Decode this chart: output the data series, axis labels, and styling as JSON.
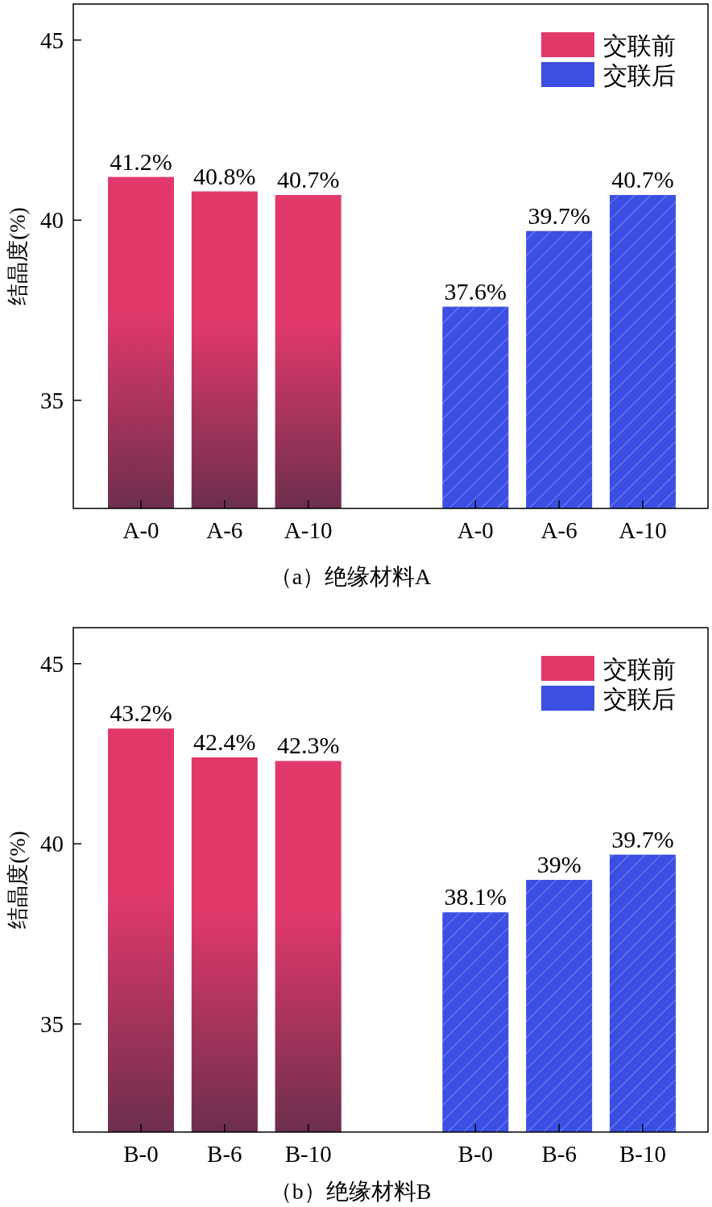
{
  "chart_data": [
    {
      "type": "bar",
      "title": "（a）绝缘材料A",
      "ylabel": "结晶度(%)",
      "categories": [
        "A-0",
        "A-6",
        "A-10",
        null,
        "A-0",
        "A-6",
        "A-10"
      ],
      "ylim": [
        32,
        46
      ],
      "yticks": [
        35,
        40,
        45
      ],
      "legend": "top right",
      "series": [
        {
          "name": "交联前",
          "color": "#e2396b",
          "values": [
            41.2,
            40.8,
            40.7,
            null,
            null,
            null,
            null
          ],
          "value_labels": [
            "41.2%",
            "40.8%",
            "40.7%",
            null,
            null,
            null,
            null
          ]
        },
        {
          "name": "交联后",
          "color": "#3b4fe3",
          "values": [
            null,
            null,
            null,
            null,
            37.6,
            39.7,
            40.7
          ],
          "value_labels": [
            null,
            null,
            null,
            null,
            "37.6%",
            "39.7%",
            "40.7%"
          ]
        }
      ]
    },
    {
      "type": "bar",
      "title": "（b）绝缘材料B",
      "ylabel": "结晶度(%)",
      "categories": [
        "B-0",
        "B-6",
        "B-10",
        null,
        "B-0",
        "B-6",
        "B-10"
      ],
      "ylim": [
        32,
        46
      ],
      "yticks": [
        35,
        40,
        45
      ],
      "legend": "top right",
      "series": [
        {
          "name": "交联前",
          "color": "#e2396b",
          "values": [
            43.2,
            42.4,
            42.3,
            null,
            null,
            null,
            null
          ],
          "value_labels": [
            "43.2%",
            "42.4%",
            "42.3%",
            null,
            null,
            null,
            null
          ]
        },
        {
          "name": "交联后",
          "color": "#3b4fe3",
          "values": [
            null,
            null,
            null,
            null,
            38.1,
            39,
            39.7
          ],
          "value_labels": [
            null,
            null,
            null,
            null,
            "38.1%",
            "39%",
            "39.7%"
          ]
        }
      ]
    }
  ]
}
